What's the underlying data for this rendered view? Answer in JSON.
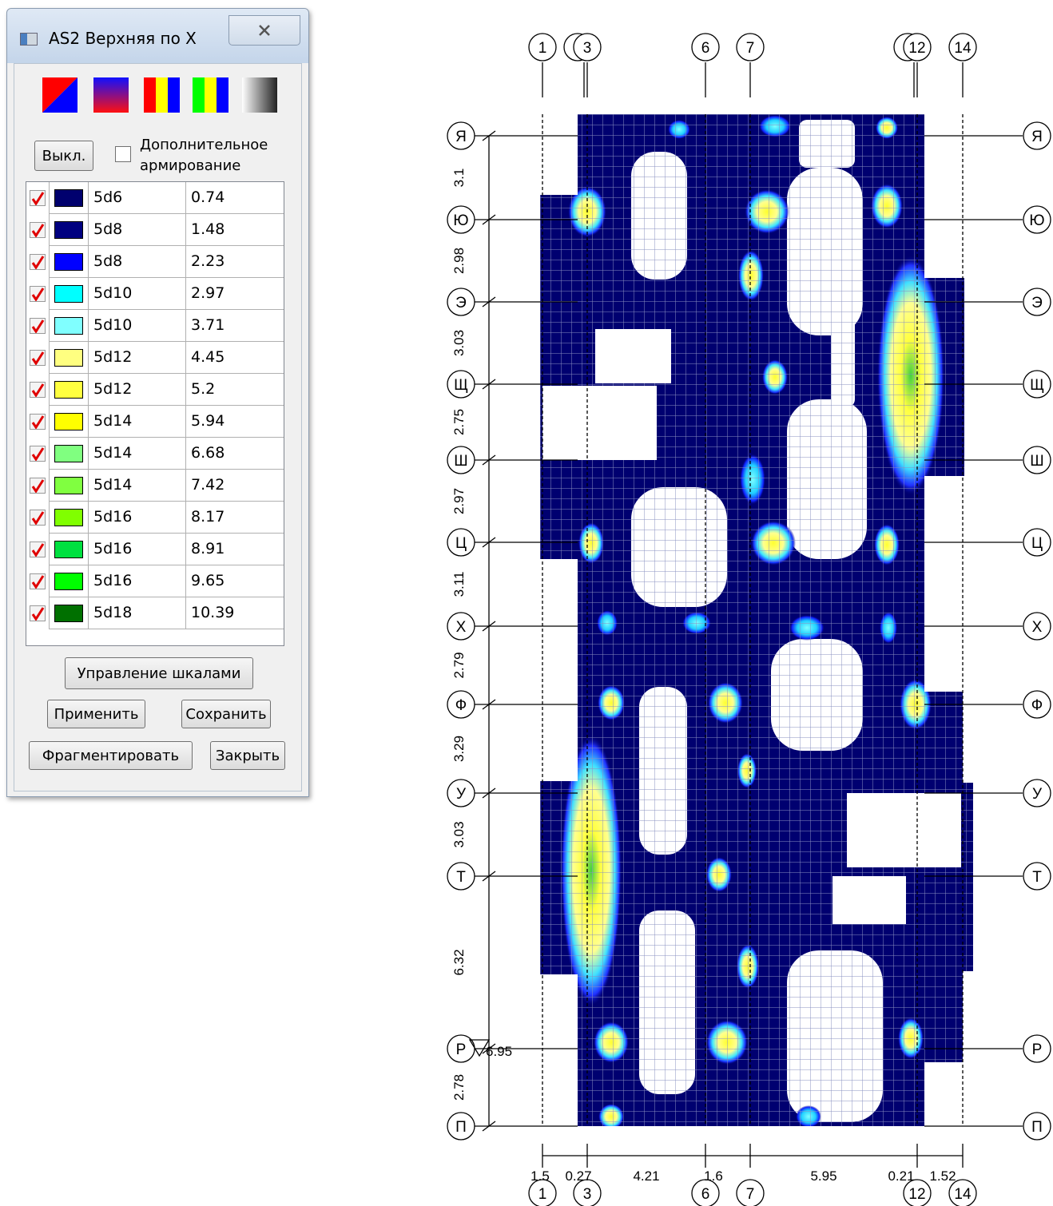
{
  "dialog": {
    "title": "AS2 Верхняя по X",
    "off_button": "Выкл.",
    "extra_checkbox": "Дополнительное армирование",
    "rows": [
      {
        "label": "5d6",
        "value": "0.74",
        "color": "#00006e"
      },
      {
        "label": "5d8",
        "value": "1.48",
        "color": "#000080"
      },
      {
        "label": "5d8",
        "value": "2.23",
        "color": "#0000ff"
      },
      {
        "label": "5d10",
        "value": "2.97",
        "color": "#00ffff"
      },
      {
        "label": "5d10",
        "value": "3.71",
        "color": "#80ffff"
      },
      {
        "label": "5d12",
        "value": "4.45",
        "color": "#ffff80"
      },
      {
        "label": "5d12",
        "value": "5.2",
        "color": "#ffff40"
      },
      {
        "label": "5d14",
        "value": "5.94",
        "color": "#ffff00"
      },
      {
        "label": "5d14",
        "value": "6.68",
        "color": "#80ff80"
      },
      {
        "label": "5d14",
        "value": "7.42",
        "color": "#80ff40"
      },
      {
        "label": "5d16",
        "value": "8.17",
        "color": "#80ff00"
      },
      {
        "label": "5d16",
        "value": "8.91",
        "color": "#00e040"
      },
      {
        "label": "5d16",
        "value": "9.65",
        "color": "#00ff00"
      },
      {
        "label": "5d18",
        "value": "10.39",
        "color": "#007000"
      }
    ],
    "buttons": {
      "scales": "Управление шкалами",
      "apply": "Применить",
      "save": "Сохранить",
      "fragment": "Фрагментировать",
      "close": "Закрыть"
    }
  },
  "plan": {
    "columns": [
      "1",
      "3",
      "6",
      "7",
      "12",
      "14"
    ],
    "rows": [
      "Я",
      "Ю",
      "Э",
      "Щ",
      "Ш",
      "Ц",
      "Х",
      "Ф",
      "У",
      "Т",
      "Р",
      "П"
    ],
    "row_dims": [
      "3.1",
      "2.98",
      "3.03",
      "2.75",
      "2.97",
      "3.11",
      "2.79",
      "3.29",
      "3.03",
      "6.32",
      "2.78"
    ],
    "col_dims": [
      "1.5",
      "0.27",
      "4.21",
      "1.6",
      "5.95",
      "0.21",
      "1.52"
    ],
    "level_mark": "6.95"
  }
}
